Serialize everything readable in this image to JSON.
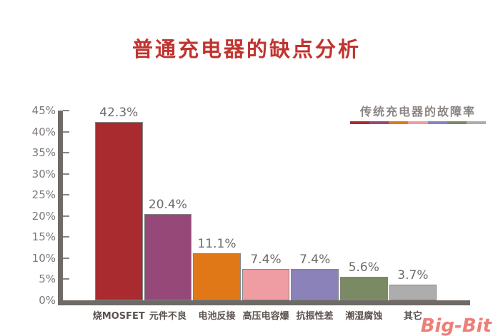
{
  "page": {
    "title": "普通充电器的缺点分析",
    "watermark": "Big-Bit"
  },
  "legend": {
    "label": "传统充电器的故障率"
  },
  "chart_data": {
    "type": "bar",
    "title": "普通充电器的缺点分析",
    "legend": "传统充电器的故障率",
    "legend_position": "top-right",
    "categories": [
      "烧MOSFET",
      "元件不良",
      "电池反接",
      "高压电容爆",
      "抗振性差",
      "潮湿腐蚀",
      "其它"
    ],
    "values": [
      42.3,
      20.4,
      11.1,
      7.4,
      7.4,
      5.6,
      3.7
    ],
    "value_labels": [
      "42.3%",
      "20.4%",
      "11.1%",
      "7.4%",
      "7.4%",
      "5.6%",
      "3.7%"
    ],
    "bar_colors": [
      "#a92b30",
      "#964878",
      "#e07818",
      "#f09ca3",
      "#8b82ba",
      "#7a8a62",
      "#adadad"
    ],
    "ylim": [
      0,
      45
    ],
    "ytick_step": 5,
    "ytick_labels": [
      "0%",
      "5%",
      "10%",
      "15%",
      "20%",
      "25%",
      "30%",
      "35%",
      "40%",
      "45%"
    ],
    "xlabel": "",
    "ylabel": "",
    "grid": false
  },
  "colors": {
    "title": "#c0342f",
    "axis": "#6e6a66",
    "tick_label": "#7d7875",
    "data_label": "#6e6a67",
    "category_label": "#5d534e",
    "legend_text": "#8a8582",
    "bar_border": "#848484",
    "watermark": "#ee7f78"
  }
}
